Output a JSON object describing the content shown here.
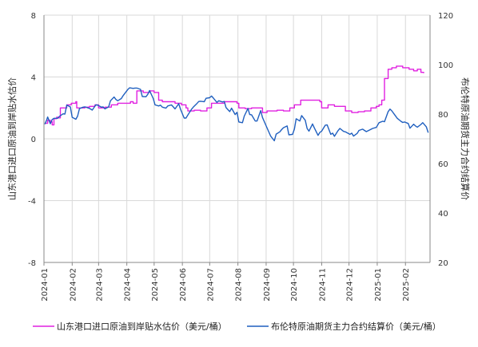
{
  "chart_data": {
    "type": "line",
    "y_left_label": "山东港口进口原油到岸贴水估价",
    "y_right_label": "布伦特原油期货主力合约结算价",
    "y_left_ticks": [
      "8",
      "4",
      "0",
      "-4",
      "-8"
    ],
    "y_right_ticks": [
      "120",
      "100",
      "80",
      "60",
      "40",
      "20"
    ],
    "ylim_left": [
      -8,
      8
    ],
    "ylim_right": [
      20,
      120
    ],
    "x_ticks": [
      "2024-01",
      "2024-02",
      "2024-03",
      "2024-04",
      "2024-05",
      "2024-06",
      "2024-07",
      "2024-08",
      "2024-09",
      "2024-10",
      "2024-11",
      "2024-12",
      "2025-01",
      "2025-02"
    ],
    "grid": true,
    "legend_position": "bottom",
    "series": [
      {
        "name": "山东港口进口原油到岸贴水估价（美元/桶）",
        "axis": "left",
        "color": "#e020e0",
        "points": [
          [
            "2024-01-02",
            1.0
          ],
          [
            "2024-01-05",
            1.2
          ],
          [
            "2024-01-08",
            1.1
          ],
          [
            "2024-01-10",
            0.9
          ],
          [
            "2024-01-12",
            1.3
          ],
          [
            "2024-01-15",
            1.4
          ],
          [
            "2024-01-17",
            1.35
          ],
          [
            "2024-01-19",
            2.0
          ],
          [
            "2024-01-24",
            2.0
          ],
          [
            "2024-01-26",
            2.2
          ],
          [
            "2024-01-31",
            2.3
          ],
          [
            "2024-02-05",
            2.4
          ],
          [
            "2024-02-06",
            2.0
          ],
          [
            "2024-02-15",
            2.05
          ],
          [
            "2024-02-20",
            2.1
          ],
          [
            "2024-02-26",
            2.2
          ],
          [
            "2024-03-01",
            2.0
          ],
          [
            "2024-03-08",
            2.05
          ],
          [
            "2024-03-15",
            2.2
          ],
          [
            "2024-03-22",
            2.3
          ],
          [
            "2024-03-29",
            2.3
          ],
          [
            "2024-04-05",
            2.4
          ],
          [
            "2024-04-08",
            2.3
          ],
          [
            "2024-04-12",
            3.1
          ],
          [
            "2024-04-19",
            3.0
          ],
          [
            "2024-04-26",
            3.1
          ],
          [
            "2024-05-01",
            3.0
          ],
          [
            "2024-05-06",
            2.5
          ],
          [
            "2024-05-10",
            2.4
          ],
          [
            "2024-05-17",
            2.4
          ],
          [
            "2024-05-24",
            2.3
          ],
          [
            "2024-05-31",
            2.2
          ],
          [
            "2024-06-05",
            2.0
          ],
          [
            "2024-06-07",
            1.8
          ],
          [
            "2024-06-14",
            1.85
          ],
          [
            "2024-06-21",
            1.8
          ],
          [
            "2024-06-28",
            2.0
          ],
          [
            "2024-07-03",
            2.3
          ],
          [
            "2024-07-10",
            2.3
          ],
          [
            "2024-07-17",
            2.4
          ],
          [
            "2024-07-24",
            2.4
          ],
          [
            "2024-07-31",
            2.3
          ],
          [
            "2024-08-02",
            2.0
          ],
          [
            "2024-08-09",
            1.95
          ],
          [
            "2024-08-16",
            2.0
          ],
          [
            "2024-08-23",
            2.0
          ],
          [
            "2024-08-28",
            1.7
          ],
          [
            "2024-09-02",
            1.8
          ],
          [
            "2024-09-06",
            1.8
          ],
          [
            "2024-09-13",
            1.85
          ],
          [
            "2024-09-20",
            1.8
          ],
          [
            "2024-09-27",
            2.0
          ],
          [
            "2024-10-02",
            2.2
          ],
          [
            "2024-10-09",
            2.5
          ],
          [
            "2024-10-16",
            2.5
          ],
          [
            "2024-10-23",
            2.5
          ],
          [
            "2024-10-30",
            2.4
          ],
          [
            "2024-11-01",
            2.0
          ],
          [
            "2024-11-08",
            2.2
          ],
          [
            "2024-11-15",
            2.1
          ],
          [
            "2024-11-22",
            2.1
          ],
          [
            "2024-11-27",
            1.8
          ],
          [
            "2024-12-04",
            1.7
          ],
          [
            "2024-12-11",
            1.75
          ],
          [
            "2024-12-18",
            1.8
          ],
          [
            "2024-12-25",
            2.0
          ],
          [
            "2024-12-31",
            2.1
          ],
          [
            "2025-01-03",
            2.2
          ],
          [
            "2025-01-06",
            2.5
          ],
          [
            "2025-01-09",
            3.9
          ],
          [
            "2025-01-13",
            4.5
          ],
          [
            "2025-01-17",
            4.6
          ],
          [
            "2025-01-22",
            4.7
          ],
          [
            "2025-01-29",
            4.6
          ],
          [
            "2025-02-05",
            4.5
          ],
          [
            "2025-02-10",
            4.4
          ],
          [
            "2025-02-14",
            4.5
          ],
          [
            "2025-02-18",
            4.3
          ],
          [
            "2025-02-21",
            4.25
          ]
        ]
      },
      {
        "name": "布伦特原油期货主力合约结算价（美元/桶）",
        "axis": "right",
        "color": "#1f5fbf",
        "points": [
          [
            "2024-01-02",
            75.9
          ],
          [
            "2024-01-04",
            77.6
          ],
          [
            "2024-01-05",
            78.8
          ],
          [
            "2024-01-08",
            76.1
          ],
          [
            "2024-01-10",
            77.8
          ],
          [
            "2024-01-12",
            78.3
          ],
          [
            "2024-01-16",
            78.3
          ],
          [
            "2024-01-18",
            79.1
          ],
          [
            "2024-01-22",
            80.1
          ],
          [
            "2024-01-24",
            80.0
          ],
          [
            "2024-01-26",
            83.6
          ],
          [
            "2024-01-30",
            82.9
          ],
          [
            "2024-02-01",
            78.7
          ],
          [
            "2024-02-05",
            77.9
          ],
          [
            "2024-02-07",
            79.2
          ],
          [
            "2024-02-09",
            82.2
          ],
          [
            "2024-02-13",
            82.8
          ],
          [
            "2024-02-15",
            82.9
          ],
          [
            "2024-02-20",
            82.3
          ],
          [
            "2024-02-23",
            81.6
          ],
          [
            "2024-02-27",
            83.7
          ],
          [
            "2024-02-29",
            83.6
          ],
          [
            "2024-03-04",
            82.8
          ],
          [
            "2024-03-06",
            82.9
          ],
          [
            "2024-03-08",
            82.1
          ],
          [
            "2024-03-12",
            82.9
          ],
          [
            "2024-03-14",
            85.4
          ],
          [
            "2024-03-18",
            86.9
          ],
          [
            "2024-03-20",
            85.9
          ],
          [
            "2024-03-22",
            85.4
          ],
          [
            "2024-03-26",
            86.3
          ],
          [
            "2024-03-28",
            87.5
          ],
          [
            "2024-04-02",
            89.9
          ],
          [
            "2024-04-04",
            90.6
          ],
          [
            "2024-04-08",
            90.4
          ],
          [
            "2024-04-10",
            90.5
          ],
          [
            "2024-04-12",
            90.5
          ],
          [
            "2024-04-16",
            90.0
          ],
          [
            "2024-04-18",
            87.1
          ],
          [
            "2024-04-22",
            87.0
          ],
          [
            "2024-04-24",
            88.0
          ],
          [
            "2024-04-26",
            89.5
          ],
          [
            "2024-04-30",
            86.3
          ],
          [
            "2024-05-02",
            83.7
          ],
          [
            "2024-05-06",
            83.3
          ],
          [
            "2024-05-08",
            83.6
          ],
          [
            "2024-05-10",
            82.8
          ],
          [
            "2024-05-14",
            82.4
          ],
          [
            "2024-05-16",
            83.3
          ],
          [
            "2024-05-20",
            83.7
          ],
          [
            "2024-05-22",
            82.9
          ],
          [
            "2024-05-24",
            82.1
          ],
          [
            "2024-05-28",
            84.2
          ],
          [
            "2024-05-30",
            81.9
          ],
          [
            "2024-06-03",
            78.4
          ],
          [
            "2024-06-05",
            78.4
          ],
          [
            "2024-06-07",
            79.6
          ],
          [
            "2024-06-11",
            81.9
          ],
          [
            "2024-06-13",
            82.8
          ],
          [
            "2024-06-17",
            84.3
          ],
          [
            "2024-06-19",
            85.1
          ],
          [
            "2024-06-21",
            85.2
          ],
          [
            "2024-06-25",
            85.0
          ],
          [
            "2024-06-27",
            86.4
          ],
          [
            "2024-07-01",
            86.6
          ],
          [
            "2024-07-03",
            87.3
          ],
          [
            "2024-07-05",
            86.5
          ],
          [
            "2024-07-09",
            84.7
          ],
          [
            "2024-07-11",
            85.4
          ],
          [
            "2024-07-15",
            84.9
          ],
          [
            "2024-07-17",
            85.1
          ],
          [
            "2024-07-19",
            82.6
          ],
          [
            "2024-07-23",
            81.0
          ],
          [
            "2024-07-25",
            82.4
          ],
          [
            "2024-07-29",
            79.8
          ],
          [
            "2024-07-31",
            80.7
          ],
          [
            "2024-08-02",
            76.8
          ],
          [
            "2024-08-06",
            76.5
          ],
          [
            "2024-08-08",
            79.2
          ],
          [
            "2024-08-12",
            82.3
          ],
          [
            "2024-08-14",
            79.8
          ],
          [
            "2024-08-16",
            79.7
          ],
          [
            "2024-08-20",
            77.2
          ],
          [
            "2024-08-22",
            77.2
          ],
          [
            "2024-08-26",
            81.4
          ],
          [
            "2024-08-28",
            78.6
          ],
          [
            "2024-08-30",
            76.9
          ],
          [
            "2024-09-04",
            72.7
          ],
          [
            "2024-09-06",
            71.1
          ],
          [
            "2024-09-10",
            69.2
          ],
          [
            "2024-09-12",
            71.9
          ],
          [
            "2024-09-16",
            72.8
          ],
          [
            "2024-09-18",
            73.7
          ],
          [
            "2024-09-20",
            74.5
          ],
          [
            "2024-09-24",
            75.2
          ],
          [
            "2024-09-26",
            71.6
          ],
          [
            "2024-09-30",
            71.8
          ],
          [
            "2024-10-02",
            73.9
          ],
          [
            "2024-10-04",
            78.1
          ],
          [
            "2024-10-08",
            77.2
          ],
          [
            "2024-10-10",
            79.4
          ],
          [
            "2024-10-14",
            77.5
          ],
          [
            "2024-10-16",
            74.2
          ],
          [
            "2024-10-18",
            73.1
          ],
          [
            "2024-10-22",
            76.0
          ],
          [
            "2024-10-24",
            74.4
          ],
          [
            "2024-10-28",
            71.4
          ],
          [
            "2024-10-30",
            72.6
          ],
          [
            "2024-11-01",
            73.1
          ],
          [
            "2024-11-05",
            75.5
          ],
          [
            "2024-11-07",
            75.6
          ],
          [
            "2024-11-11",
            71.8
          ],
          [
            "2024-11-13",
            72.3
          ],
          [
            "2024-11-15",
            71.0
          ],
          [
            "2024-11-19",
            73.3
          ],
          [
            "2024-11-21",
            74.2
          ],
          [
            "2024-11-25",
            73.0
          ],
          [
            "2024-11-27",
            72.8
          ],
          [
            "2024-12-02",
            71.8
          ],
          [
            "2024-12-04",
            72.3
          ],
          [
            "2024-12-06",
            71.1
          ],
          [
            "2024-12-10",
            72.2
          ],
          [
            "2024-12-12",
            73.4
          ],
          [
            "2024-12-16",
            73.9
          ],
          [
            "2024-12-18",
            73.4
          ],
          [
            "2024-12-20",
            72.9
          ],
          [
            "2024-12-24",
            73.6
          ],
          [
            "2024-12-27",
            74.2
          ],
          [
            "2024-12-31",
            74.6
          ],
          [
            "2025-01-03",
            76.5
          ],
          [
            "2025-01-07",
            77.1
          ],
          [
            "2025-01-09",
            76.9
          ],
          [
            "2025-01-13",
            81.0
          ],
          [
            "2025-01-15",
            82.0
          ],
          [
            "2025-01-17",
            81.3
          ],
          [
            "2025-01-21",
            79.3
          ],
          [
            "2025-01-23",
            78.3
          ],
          [
            "2025-01-27",
            77.1
          ],
          [
            "2025-01-29",
            76.6
          ],
          [
            "2025-01-31",
            76.8
          ],
          [
            "2025-02-04",
            76.2
          ],
          [
            "2025-02-06",
            74.3
          ],
          [
            "2025-02-10",
            75.9
          ],
          [
            "2025-02-12",
            75.2
          ],
          [
            "2025-02-14",
            74.7
          ],
          [
            "2025-02-18",
            75.8
          ],
          [
            "2025-02-20",
            76.5
          ],
          [
            "2025-02-24",
            74.8
          ],
          [
            "2025-02-26",
            72.5
          ]
        ]
      }
    ]
  }
}
